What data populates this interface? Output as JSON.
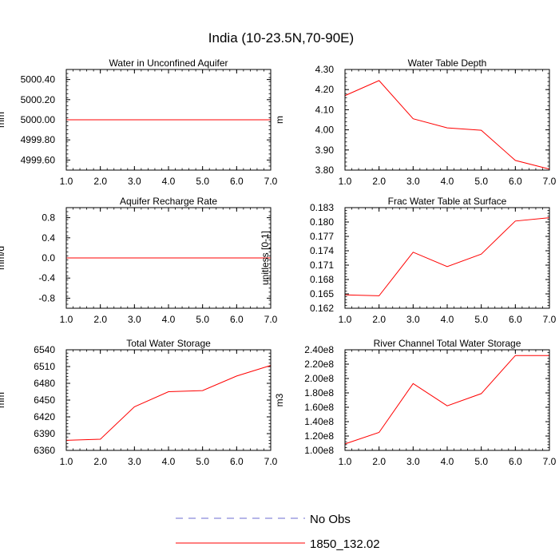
{
  "figure_title": "India (10-23.5N,70-90E)",
  "legend": [
    {
      "label": "No Obs",
      "color": "#6b6bd0",
      "style": "dashed"
    },
    {
      "label": "1850_132.02",
      "color": "#ff0000",
      "style": "solid"
    }
  ],
  "chart_data": [
    {
      "type": "line",
      "title": "Water in Unconfined Aquifer",
      "xlabel": "",
      "ylabel": "mm",
      "xlim": [
        1.0,
        7.0
      ],
      "ylim": [
        4999.5,
        5000.5
      ],
      "x_ticks": [
        1,
        2,
        3,
        4,
        5,
        6,
        7
      ],
      "x_tick_labels": [
        "1.0",
        "2.0",
        "3.0",
        "4.0",
        "5.0",
        "6.0",
        "7.0"
      ],
      "y_ticks": [
        4999.6,
        4999.8,
        5000.0,
        5000.2,
        5000.4
      ],
      "y_tick_labels": [
        "4999.60",
        "4999.80",
        "5000.00",
        "5000.20",
        "5000.40"
      ],
      "x": [
        1,
        2,
        3,
        4,
        5,
        6,
        7
      ],
      "series": [
        {
          "name": "1850_132.02",
          "color": "#ff0000",
          "values": [
            5000,
            5000,
            5000,
            5000,
            5000,
            5000,
            5000
          ]
        }
      ]
    },
    {
      "type": "line",
      "title": "Water Table Depth",
      "xlabel": "",
      "ylabel": "m",
      "xlim": [
        1.0,
        7.0
      ],
      "ylim": [
        3.8,
        4.3
      ],
      "x_ticks": [
        1,
        2,
        3,
        4,
        5,
        6,
        7
      ],
      "x_tick_labels": [
        "1.0",
        "2.0",
        "3.0",
        "4.0",
        "5.0",
        "6.0",
        "7.0"
      ],
      "y_ticks": [
        3.8,
        3.9,
        4.0,
        4.1,
        4.2,
        4.3
      ],
      "y_tick_labels": [
        "3.80",
        "3.90",
        "4.00",
        "4.10",
        "4.20",
        "4.30"
      ],
      "x": [
        1,
        2,
        3,
        4,
        5,
        6,
        7
      ],
      "series": [
        {
          "name": "1850_132.02",
          "color": "#ff0000",
          "values": [
            4.17,
            4.245,
            4.055,
            4.01,
            3.998,
            3.848,
            3.805
          ]
        }
      ]
    },
    {
      "type": "line",
      "title": "Aquifer Recharge Rate",
      "xlabel": "",
      "ylabel": "mm/d",
      "xlim": [
        1.0,
        7.0
      ],
      "ylim": [
        -1.0,
        1.0
      ],
      "x_ticks": [
        1,
        2,
        3,
        4,
        5,
        6,
        7
      ],
      "x_tick_labels": [
        "1.0",
        "2.0",
        "3.0",
        "4.0",
        "5.0",
        "6.0",
        "7.0"
      ],
      "y_ticks": [
        -0.8,
        -0.4,
        0.0,
        0.4,
        0.8
      ],
      "y_tick_labels": [
        "-0.8",
        "-0.4",
        "0.0",
        "0.4",
        "0.8"
      ],
      "x": [
        1,
        2,
        3,
        4,
        5,
        6,
        7
      ],
      "series": [
        {
          "name": "1850_132.02",
          "color": "#ff0000",
          "values": [
            0,
            0,
            0,
            0,
            0,
            0,
            0
          ]
        }
      ]
    },
    {
      "type": "line",
      "title": "Frac Water Table at Surface",
      "xlabel": "",
      "ylabel": "unitless [0-1]",
      "xlim": [
        1.0,
        7.0
      ],
      "ylim": [
        0.162,
        0.183
      ],
      "x_ticks": [
        1,
        2,
        3,
        4,
        5,
        6,
        7
      ],
      "x_tick_labels": [
        "1.0",
        "2.0",
        "3.0",
        "4.0",
        "5.0",
        "6.0",
        "7.0"
      ],
      "y_ticks": [
        0.162,
        0.165,
        0.168,
        0.171,
        0.174,
        0.177,
        0.18,
        0.183
      ],
      "y_tick_labels": [
        "0.162",
        "0.165",
        "0.168",
        "0.171",
        "0.174",
        "0.177",
        "0.180",
        "0.183"
      ],
      "x": [
        1,
        2,
        3,
        4,
        5,
        6,
        7
      ],
      "series": [
        {
          "name": "1850_132.02",
          "color": "#ff0000",
          "values": [
            0.1648,
            0.1646,
            0.1737,
            0.1707,
            0.1733,
            0.1802,
            0.1809
          ]
        }
      ]
    },
    {
      "type": "line",
      "title": "Total Water Storage",
      "xlabel": "",
      "ylabel": "mm",
      "xlim": [
        1.0,
        7.0
      ],
      "ylim": [
        6360,
        6540
      ],
      "x_ticks": [
        1,
        2,
        3,
        4,
        5,
        6,
        7
      ],
      "x_tick_labels": [
        "1.0",
        "2.0",
        "3.0",
        "4.0",
        "5.0",
        "6.0",
        "7.0"
      ],
      "y_ticks": [
        6360,
        6390,
        6420,
        6450,
        6480,
        6510,
        6540
      ],
      "y_tick_labels": [
        "6360",
        "6390",
        "6420",
        "6450",
        "6480",
        "6510",
        "6540"
      ],
      "x": [
        1,
        2,
        3,
        4,
        5,
        6,
        7
      ],
      "series": [
        {
          "name": "1850_132.02",
          "color": "#ff0000",
          "values": [
            6378,
            6380,
            6438,
            6465,
            6467,
            6493,
            6512
          ]
        }
      ]
    },
    {
      "type": "line",
      "title": "River Channel Total Water Storage",
      "xlabel": "",
      "ylabel": "m3",
      "xlim": [
        1.0,
        7.0
      ],
      "ylim": [
        100000000,
        240000000
      ],
      "x_ticks": [
        1,
        2,
        3,
        4,
        5,
        6,
        7
      ],
      "x_tick_labels": [
        "1.0",
        "2.0",
        "3.0",
        "4.0",
        "5.0",
        "6.0",
        "7.0"
      ],
      "y_ticks": [
        100000000,
        120000000,
        140000000,
        160000000,
        180000000,
        200000000,
        220000000,
        240000000
      ],
      "y_tick_labels": [
        "1.00e8",
        "1.20e8",
        "1.40e8",
        "1.60e8",
        "1.80e8",
        "2.00e8",
        "2.20e8",
        "2.40e8"
      ],
      "x": [
        1,
        2,
        3,
        4,
        5,
        6,
        7
      ],
      "series": [
        {
          "name": "1850_132.02",
          "color": "#ff0000",
          "values": [
            109000000,
            125000000,
            193000000,
            162000000,
            179000000,
            232000000,
            232000000
          ]
        }
      ]
    }
  ]
}
